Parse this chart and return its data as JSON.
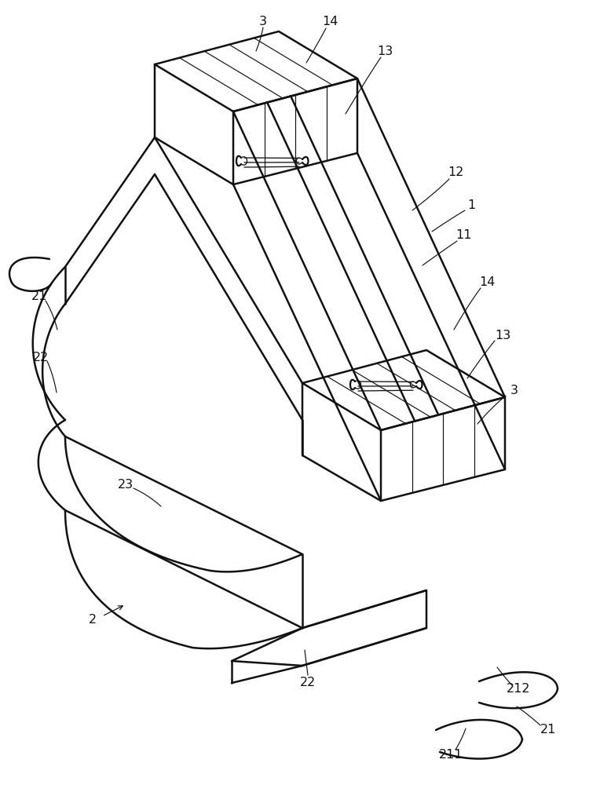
{
  "bg_color": "#ffffff",
  "line_color": "#111111",
  "lw_main": 1.8,
  "lw_thin": 0.85,
  "label_fontsize": 11.5,
  "fig_w": 7.64,
  "fig_h": 10.0,
  "dpi": 100
}
